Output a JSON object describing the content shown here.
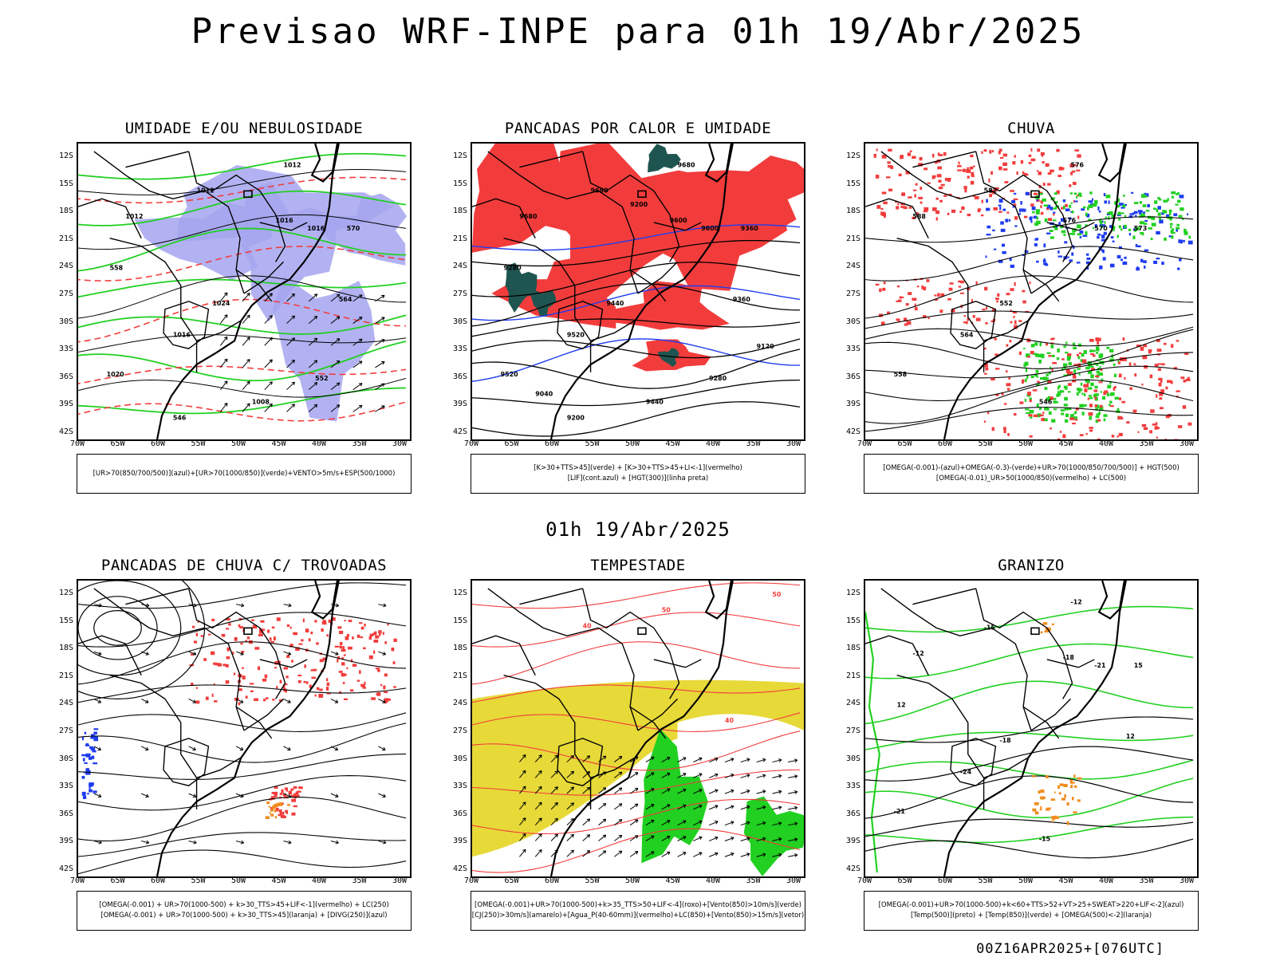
{
  "header": {
    "title": "Previsao WRF-INPE  para 01h 19/Abr/2025",
    "row_time": "01h 19/Abr/2025",
    "footer": "00Z16APR2025+[076UTC]"
  },
  "axes": {
    "lat_ticks": [
      "12S",
      "15S",
      "18S",
      "21S",
      "24S",
      "27S",
      "30S",
      "33S",
      "36S",
      "39S",
      "42S"
    ],
    "lon_ticks": [
      "70W",
      "65W",
      "60W",
      "55W",
      "50W",
      "45W",
      "40W",
      "35W",
      "30W"
    ]
  },
  "colors": {
    "red": "#f23c3c",
    "green": "#21d021",
    "lavender": "#a5a5f0",
    "blue": "#1e3cf0",
    "dark_teal": "#1f5550",
    "yellow": "#e6d72d",
    "orange": "#f08c1e"
  },
  "panels": [
    {
      "title": "UMIDADE E/OU NEBULOSIDADE",
      "legend": [
        "[UR>70(850/700/500)](azul)+[UR>70(1000/850)](verde)+VENTO>5m/s+ESP(500/1000)"
      ],
      "contour_labels": [
        "1012",
        "1012",
        "1012",
        "1016",
        "1016",
        "1016",
        "1020",
        "1024",
        "1008",
        "570",
        "564",
        "558",
        "552",
        "546"
      ]
    },
    {
      "title": "PANCADAS POR CALOR E UMIDADE",
      "legend": [
        "[K>30+TTS>45](verde) + [K>30+TTS>45+LI<-1](vermelho)",
        "[LIF](cont.azul) + [HGT(300)](linha preta)"
      ],
      "contour_labels": [
        "9680",
        "9680",
        "9680",
        "9600",
        "9600",
        "9520",
        "9520",
        "9440",
        "9440",
        "9360",
        "9360",
        "9280",
        "9280",
        "9200",
        "9200",
        "9120",
        "9040"
      ]
    },
    {
      "title": "CHUVA",
      "legend": [
        "[OMEGA(-0.001)-(azul)+OMEGA(-0.3)-(verde)+UR>70(1000/850/700/500)] + HGT(500)",
        "[OMEGA(-0.01)_UR>50(1000/850)(vermelho) + LC(500)"
      ],
      "contour_labels": [
        "588",
        "582",
        "576",
        "576",
        "570",
        "564",
        "558",
        "552",
        "546",
        "573"
      ]
    },
    {
      "title": "PANCADAS DE CHUVA C/ TROVOADAS",
      "legend": [
        "[OMEGA(-0.001) + UR>70(1000-500) + k>30_TTS>45+LIF<-1](vermelho) + LC(250)",
        "[OMEGA(-0.001) + UR>70(1000-500) + k>30_TTS>45](laranja) + [DIVG(250)](azul)"
      ],
      "contour_labels": []
    },
    {
      "title": "TEMPESTADE",
      "legend": [
        "[OMEGA(-0.001)+UR>70(1000-500)+k>35_TTS>50+LIF<-4](roxo)+[Vento(850)>10m/s](verde)",
        "[CJ(250)>30m/s](amarelo)+[Agua_P(40-60mm)](vermelho)+LC(850)+[Vento(850)>15m/s](vetor)"
      ],
      "contour_labels": [
        "40",
        "50",
        "40",
        "50"
      ]
    },
    {
      "title": "GRANIZO",
      "legend": [
        "[OMEGA(-0.001)+UR>70(1000-500)+k<60+TTS>52+VT>25+SWEAT>220+LIF<-2](azul)",
        "[Temp(500)](preto) + [Temp(850)](verde) + [OMEGA(500)<-2](laranja)"
      ],
      "contour_labels": [
        "-12",
        "-15",
        "-12",
        "-18",
        "-21",
        "-24",
        "-21",
        "-18",
        "-15",
        "15",
        "12",
        "12"
      ]
    }
  ]
}
